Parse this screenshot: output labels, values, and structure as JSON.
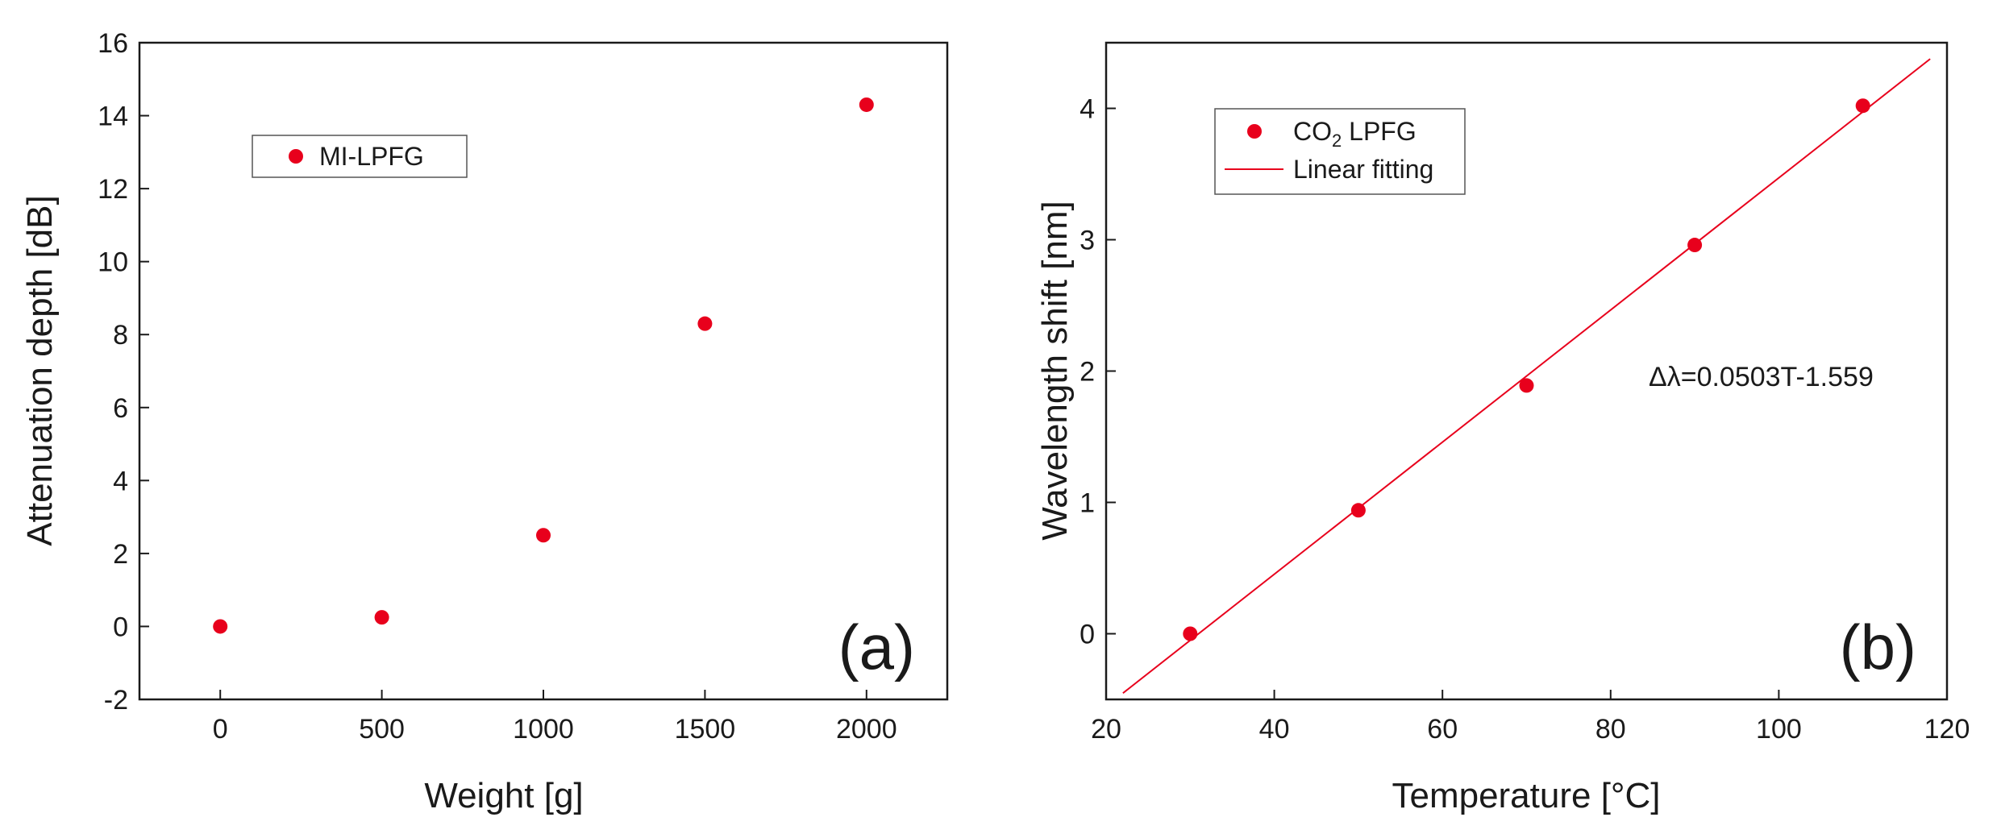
{
  "chart_data": [
    {
      "type": "scatter",
      "panel_label": "(a)",
      "xlabel": "Weight [g]",
      "ylabel": "Attenuation depth [dB]",
      "xlim": [
        -250,
        2250
      ],
      "ylim": [
        -2,
        16
      ],
      "xticks": [
        0,
        500,
        1000,
        1500,
        2000
      ],
      "yticks": [
        -2,
        0,
        2,
        4,
        6,
        8,
        10,
        12,
        14,
        16
      ],
      "series": [
        {
          "name": "MI-LPFG",
          "color": "#e8001c",
          "x": [
            0,
            500,
            1000,
            1500,
            2000
          ],
          "y": [
            0.0,
            0.25,
            2.5,
            8.3,
            14.3
          ]
        }
      ],
      "legend": {
        "entries": [
          "MI-LPFG"
        ],
        "position": "upper-left"
      }
    },
    {
      "type": "scatter",
      "panel_label": "(b)",
      "xlabel": "Temperature [°C]",
      "ylabel": "Wavelength shift [nm]",
      "xlim": [
        20,
        120
      ],
      "ylim": [
        -0.5,
        4.5
      ],
      "xticks": [
        20,
        40,
        60,
        80,
        100,
        120
      ],
      "yticks": [
        0,
        1,
        2,
        3,
        4
      ],
      "series": [
        {
          "name": "CO2 LPFG",
          "color": "#e8001c",
          "x": [
            30,
            50,
            70,
            90,
            110
          ],
          "y": [
            0.0,
            0.94,
            1.89,
            2.96,
            4.02
          ]
        }
      ],
      "fit": {
        "name": "Linear fitting",
        "color": "#e8001c",
        "slope": 0.0503,
        "intercept": -1.559,
        "x_range": [
          22,
          118
        ]
      },
      "annotation": "Δλ=0.0503T-1.559",
      "legend": {
        "entries": [
          "CO2 LPFG",
          "Linear fitting"
        ],
        "position": "upper-left"
      }
    }
  ],
  "legend_text": {
    "a_marker": "MI-LPFG",
    "b_marker_prefix": "CO",
    "b_marker_sub": "2",
    "b_marker_suffix": " LPFG",
    "b_line": "Linear fitting"
  }
}
